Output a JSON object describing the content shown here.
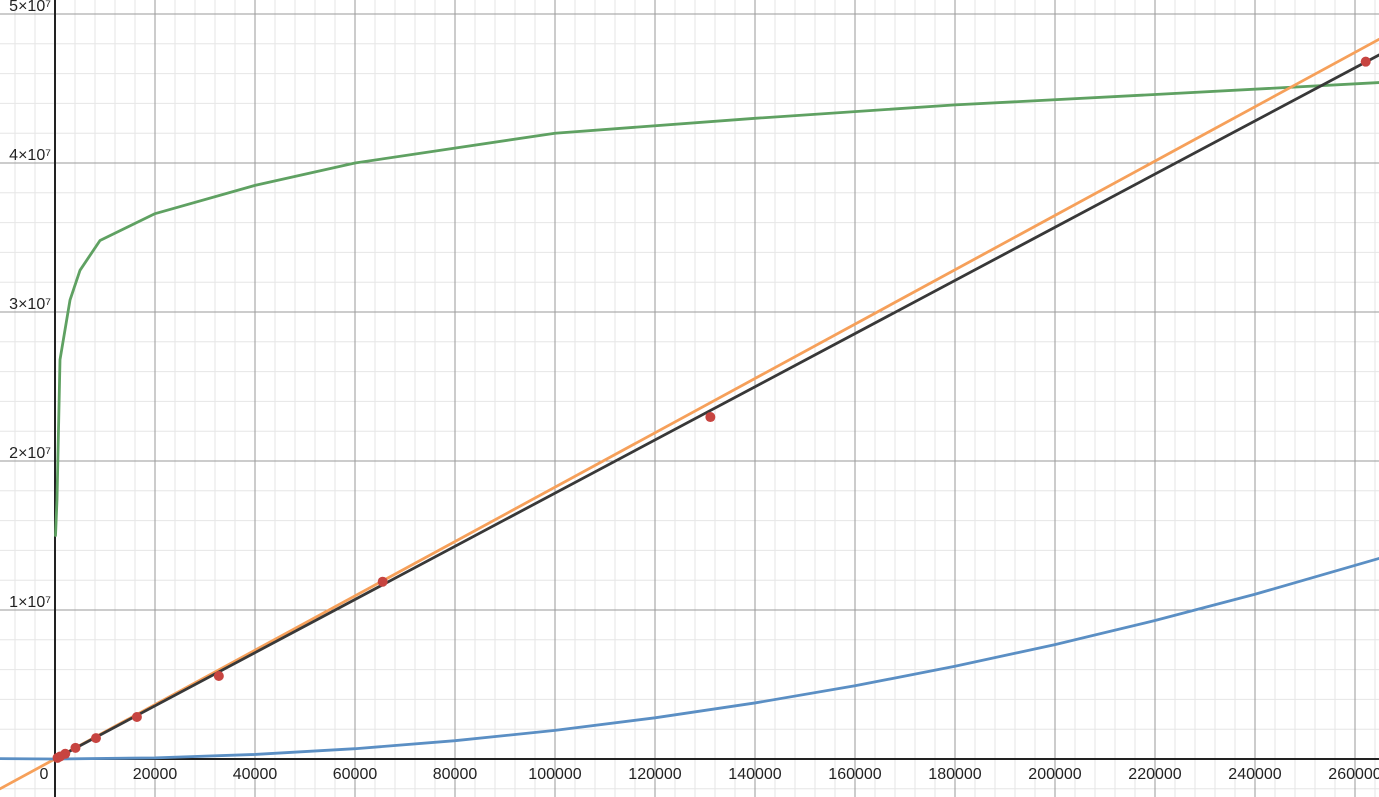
{
  "chart_data": {
    "type": "line",
    "xlim": [
      -11000,
      264800
    ],
    "ylim": [
      -2550000,
      50940000
    ],
    "xticks": [
      {
        "value": 0,
        "label": "0"
      },
      20000,
      40000,
      60000,
      80000,
      100000,
      120000,
      140000,
      160000,
      180000,
      200000,
      220000,
      240000,
      260000
    ],
    "yticks": [
      {
        "value": 10000000,
        "label": "1×10⁷"
      },
      {
        "value": 20000000,
        "label": "2×10⁷"
      },
      {
        "value": 30000000,
        "label": "3×10⁷"
      },
      {
        "value": 40000000,
        "label": "4×10⁷"
      },
      {
        "value": 50000000,
        "label": "5×10⁷"
      }
    ],
    "grid": true,
    "series": [
      {
        "type": "line",
        "color": "#5fa162",
        "x": [
          100,
          400,
          1000,
          3000,
          5000,
          9000,
          20000,
          40000,
          60000,
          100000,
          140000,
          180000,
          220000,
          264800
        ],
        "values": [
          15000000,
          17400000,
          26800000,
          30800000,
          32800000,
          34800000,
          36600000,
          38500000,
          40000000,
          42000000,
          43000000,
          43900000,
          44600000,
          45400000
        ]
      },
      {
        "type": "line",
        "color": "#f6a05a",
        "x": [
          -11000,
          264800
        ],
        "values": [
          -2000000,
          48300000
        ]
      },
      {
        "type": "line",
        "color": "#383838",
        "x": [
          0,
          264800
        ],
        "values": [
          0,
          47250000
        ]
      },
      {
        "type": "line",
        "color": "#5b8fc4",
        "x": [
          -11000,
          0,
          20000,
          40000,
          60000,
          80000,
          100000,
          120000,
          140000,
          160000,
          180000,
          200000,
          220000,
          240000,
          264800
        ],
        "values": [
          23000,
          0,
          77000,
          307000,
          691000,
          1229000,
          1920000,
          2765000,
          3763000,
          4915000,
          6221000,
          7680000,
          9293000,
          11059000,
          13460000
        ]
      },
      {
        "type": "scatter",
        "color": "#c74440",
        "x": [
          512,
          1024,
          2048,
          4096,
          8192,
          16384,
          32768,
          65536,
          131072,
          262144
        ],
        "values": [
          80000,
          170000,
          350000,
          750000,
          1400000,
          2820000,
          5570000,
          11900000,
          22950000,
          46800000
        ]
      }
    ]
  }
}
